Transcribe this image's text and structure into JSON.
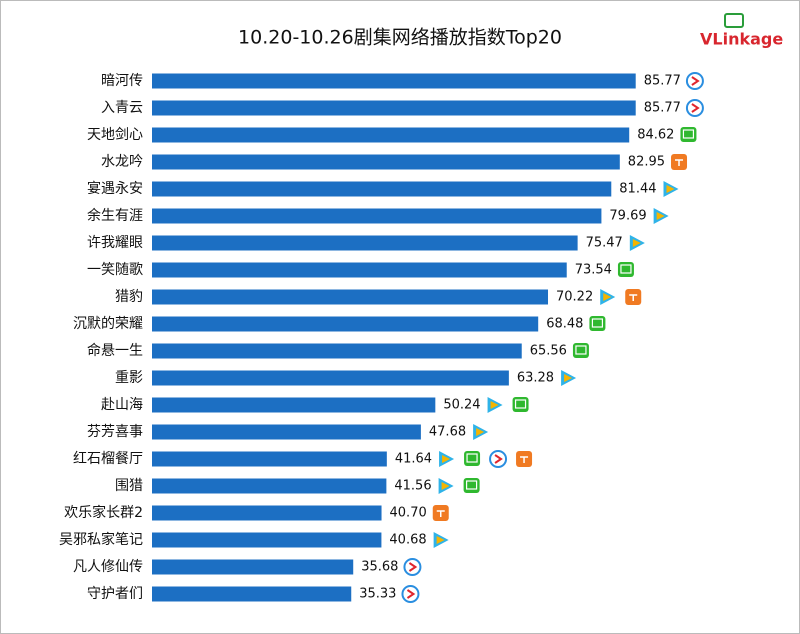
{
  "logo": "VLinkage",
  "chart_data": {
    "type": "bar",
    "orientation": "horizontal",
    "title": "10.20-10.26剧集网络播放指数Top20",
    "categories": [
      "暗河传",
      "入青云",
      "天地剑心",
      "水龙吟",
      "宴遇永安",
      "余生有涯",
      "许我耀眼",
      "一笑随歌",
      "猎豹",
      "沉默的荣耀",
      "命悬一生",
      "重影",
      "赴山海",
      "芬芳喜事",
      "红石榴餐厅",
      "围猎",
      "欢乐家长群2",
      "吴邪私家笔记",
      "凡人修仙传",
      "守护者们"
    ],
    "values": [
      85.77,
      85.77,
      84.62,
      82.95,
      81.44,
      79.69,
      75.47,
      73.54,
      70.22,
      68.48,
      65.56,
      63.28,
      50.24,
      47.68,
      41.64,
      41.56,
      40.7,
      40.68,
      35.68,
      35.33
    ],
    "value_labels": [
      "85.77",
      "85.77",
      "84.62",
      "82.95",
      "81.44",
      "79.69",
      "75.47",
      "73.54",
      "70.22",
      "68.48",
      "65.56",
      "63.28",
      "50.24",
      "47.68",
      "41.64",
      "41.56",
      "40.70",
      "40.68",
      "35.68",
      "35.33"
    ],
    "color": "#1c6fc3",
    "xlim": [
      0,
      86
    ]
  }
}
